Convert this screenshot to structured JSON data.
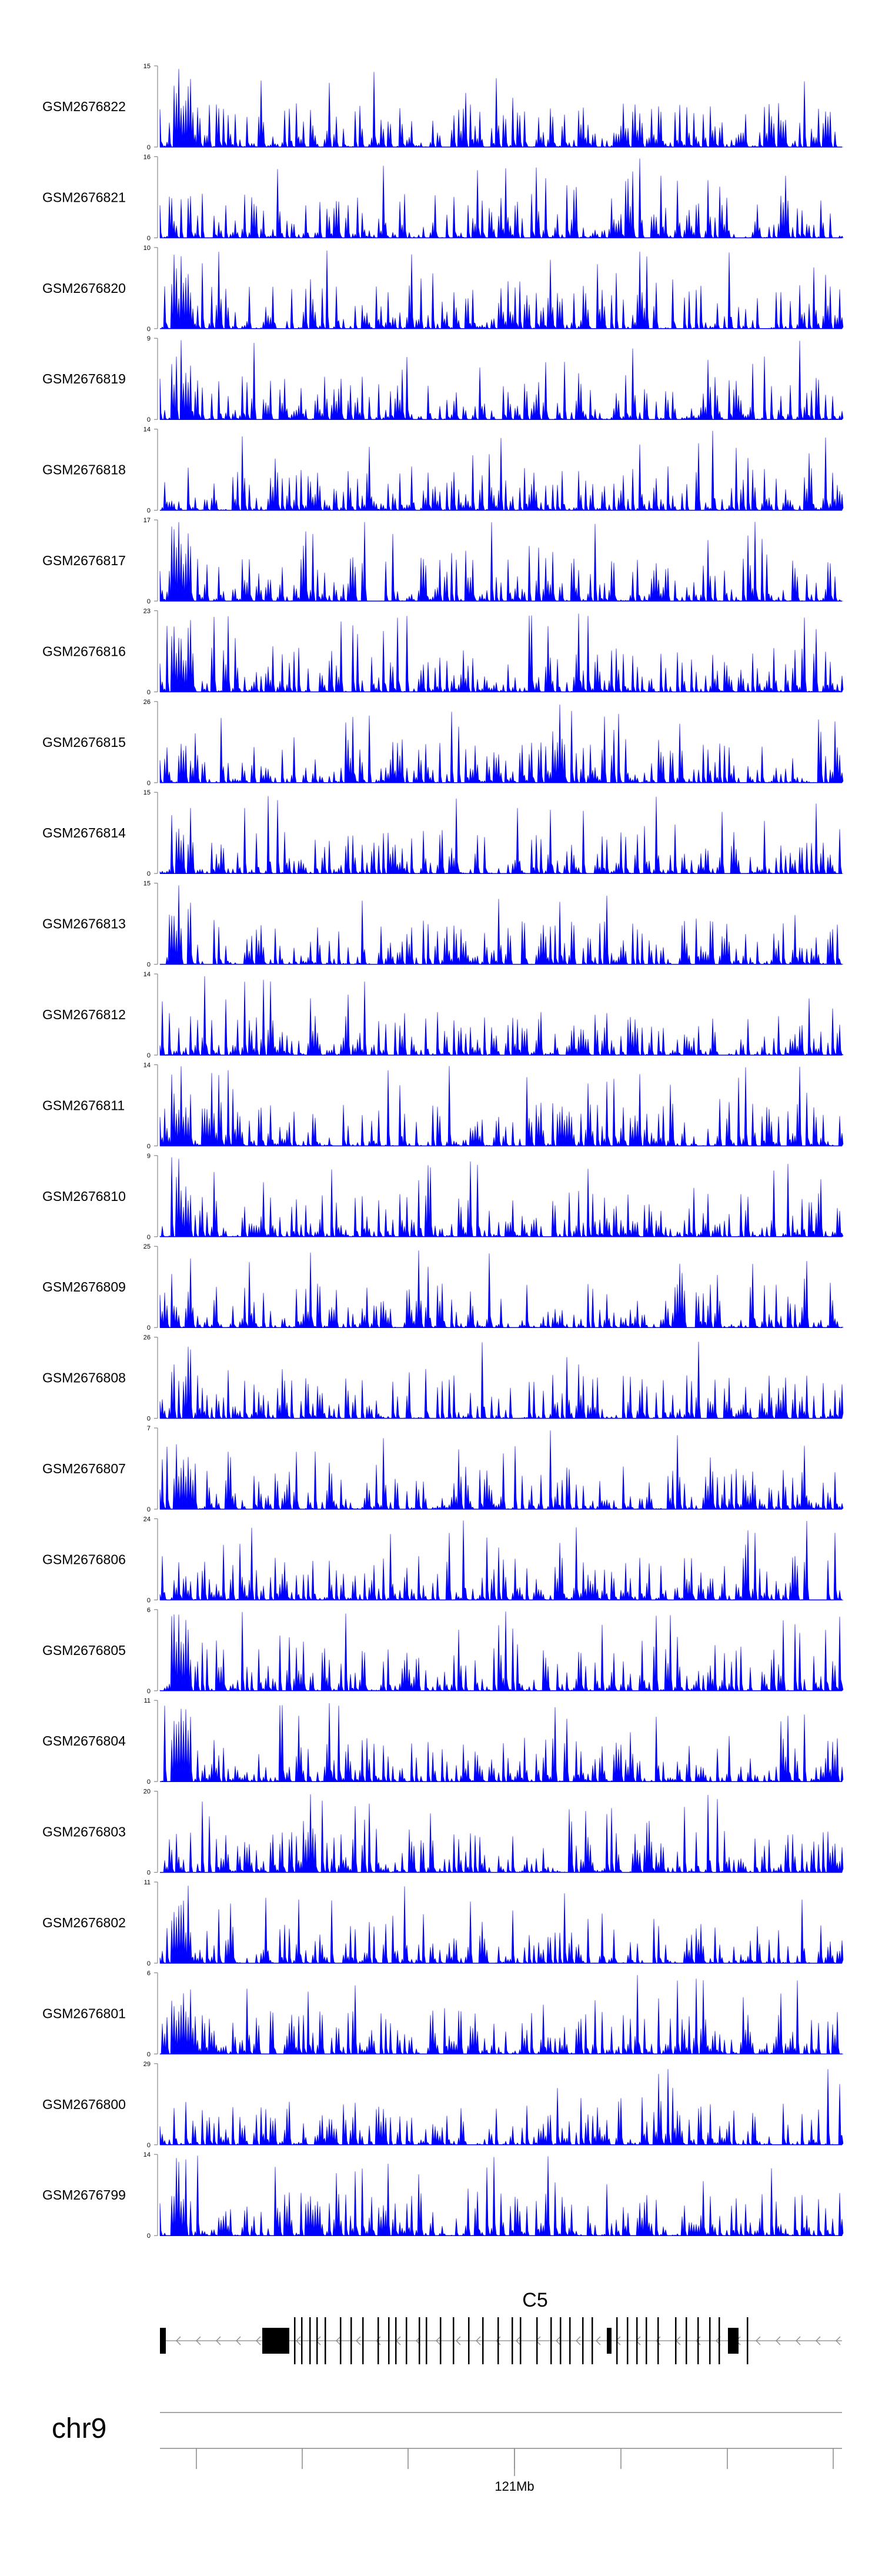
{
  "chart_data": {
    "type": "area",
    "track_color": "#0000ff",
    "tracks": [
      {
        "name": "GSM2676822",
        "ymax": 15
      },
      {
        "name": "GSM2676821",
        "ymax": 16
      },
      {
        "name": "GSM2676820",
        "ymax": 10
      },
      {
        "name": "GSM2676819",
        "ymax": 9
      },
      {
        "name": "GSM2676818",
        "ymax": 14
      },
      {
        "name": "GSM2676817",
        "ymax": 17
      },
      {
        "name": "GSM2676816",
        "ymax": 23
      },
      {
        "name": "GSM2676815",
        "ymax": 26
      },
      {
        "name": "GSM2676814",
        "ymax": 15
      },
      {
        "name": "GSM2676813",
        "ymax": 15
      },
      {
        "name": "GSM2676812",
        "ymax": 14
      },
      {
        "name": "GSM2676811",
        "ymax": 14
      },
      {
        "name": "GSM2676810",
        "ymax": 9
      },
      {
        "name": "GSM2676809",
        "ymax": 25
      },
      {
        "name": "GSM2676808",
        "ymax": 26
      },
      {
        "name": "GSM2676807",
        "ymax": 7
      },
      {
        "name": "GSM2676806",
        "ymax": 24
      },
      {
        "name": "GSM2676805",
        "ymax": 6
      },
      {
        "name": "GSM2676804",
        "ymax": 11
      },
      {
        "name": "GSM2676803",
        "ymax": 20
      },
      {
        "name": "GSM2676802",
        "ymax": 11
      },
      {
        "name": "GSM2676801",
        "ymax": 6
      },
      {
        "name": "GSM2676800",
        "ymax": 29
      },
      {
        "name": "GSM2676799",
        "ymax": 14
      }
    ],
    "ymin_label": "0",
    "gene": {
      "name": "C5",
      "strand": "-"
    },
    "chromosome": "chr9",
    "xaxis": {
      "label": "121Mb"
    }
  }
}
